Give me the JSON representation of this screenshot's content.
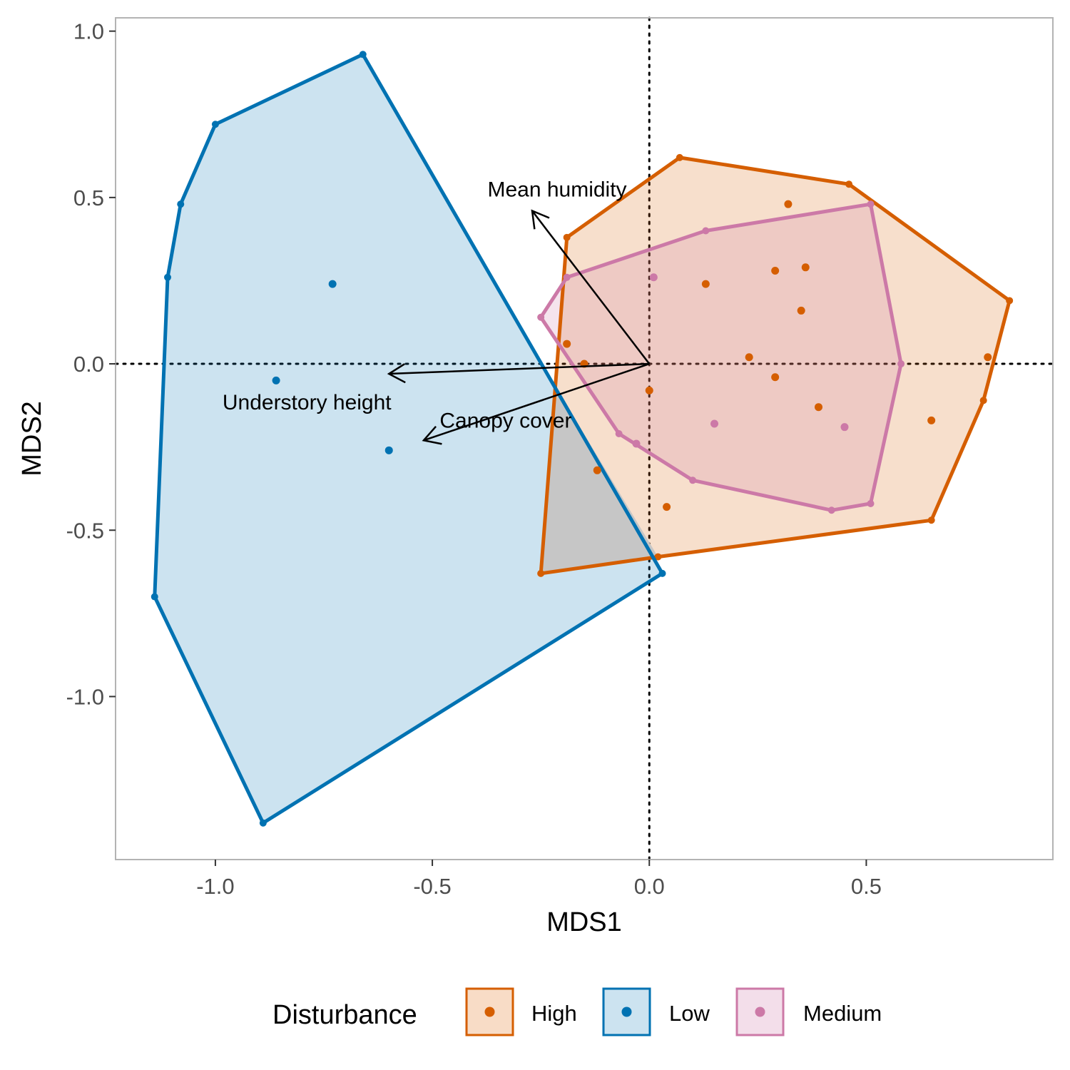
{
  "chart_data": {
    "type": "scatter",
    "title": "",
    "xlabel": "MDS1",
    "ylabel": "MDS2",
    "xlim": [
      -1.23,
      0.93
    ],
    "ylim": [
      -1.49,
      1.04
    ],
    "x_ticks": [
      -1.0,
      -0.5,
      0.0,
      0.5
    ],
    "x_tick_labels": [
      "-1.0",
      "-0.5",
      "0.0",
      "0.5"
    ],
    "y_ticks": [
      -1.0,
      -0.5,
      0.0,
      0.5,
      1.0
    ],
    "y_tick_labels": [
      "-1.0",
      "-0.5",
      "0.0",
      "0.5",
      "1.0"
    ],
    "grid": false,
    "reference_lines": {
      "x": 0,
      "y": 0,
      "style": "dotted"
    },
    "legend": {
      "title": "Disturbance",
      "position": "bottom"
    },
    "series": [
      {
        "name": "High",
        "color": "#D55E00",
        "fill": "#F8DCC6",
        "hull": [
          [
            -0.19,
            0.38
          ],
          [
            0.07,
            0.62
          ],
          [
            0.46,
            0.54
          ],
          [
            0.83,
            0.19
          ],
          [
            0.77,
            -0.11
          ],
          [
            0.65,
            -0.47
          ],
          [
            0.02,
            -0.58
          ],
          [
            -0.25,
            -0.63
          ]
        ],
        "points": [
          [
            0.32,
            0.48
          ],
          [
            0.13,
            0.24
          ],
          [
            0.36,
            0.29
          ],
          [
            0.35,
            0.16
          ],
          [
            0.29,
            0.28
          ],
          [
            -0.19,
            0.06
          ],
          [
            -0.15,
            0.0
          ],
          [
            0.23,
            0.02
          ],
          [
            0.29,
            -0.04
          ],
          [
            0.0,
            -0.08
          ],
          [
            0.78,
            0.02
          ],
          [
            0.39,
            -0.13
          ],
          [
            0.65,
            -0.17
          ],
          [
            -0.12,
            -0.32
          ],
          [
            0.04,
            -0.43
          ]
        ]
      },
      {
        "name": "Low",
        "color": "#0072B2",
        "fill": "#CCE3F0",
        "hull": [
          [
            -0.66,
            0.93
          ],
          [
            0.03,
            -0.63
          ],
          [
            -0.89,
            -1.38
          ],
          [
            -1.14,
            -0.7
          ],
          [
            -1.11,
            0.26
          ],
          [
            -1.08,
            0.48
          ],
          [
            -1.0,
            0.72
          ]
        ],
        "points": [
          [
            -0.73,
            0.24
          ],
          [
            -0.86,
            -0.05
          ],
          [
            -0.6,
            -0.26
          ]
        ]
      },
      {
        "name": "Medium",
        "color": "#CC79A7",
        "fill": "#F3DEEA",
        "hull": [
          [
            0.13,
            0.4
          ],
          [
            0.51,
            0.48
          ],
          [
            0.58,
            0.0
          ],
          [
            0.51,
            -0.42
          ],
          [
            0.42,
            -0.44
          ],
          [
            0.1,
            -0.35
          ],
          [
            -0.07,
            -0.21
          ],
          [
            -0.25,
            0.14
          ],
          [
            -0.19,
            0.26
          ]
        ],
        "points": [
          [
            0.01,
            0.26
          ],
          [
            0.15,
            -0.18
          ],
          [
            0.45,
            -0.19
          ],
          [
            -0.03,
            -0.24
          ]
        ]
      }
    ],
    "overlap_region": {
      "color": "#C6C6C6",
      "vertices": [
        [
          -0.25,
          -0.63
        ],
        [
          -0.22,
          -0.06
        ],
        [
          0.02,
          -0.58
        ]
      ]
    },
    "vectors": [
      {
        "label": "Mean humidity",
        "x": -0.27,
        "y": 0.46
      },
      {
        "label": "Understory height",
        "x": -0.6,
        "y": -0.03
      },
      {
        "label": "Canopy cover",
        "x": -0.52,
        "y": -0.23
      }
    ]
  }
}
